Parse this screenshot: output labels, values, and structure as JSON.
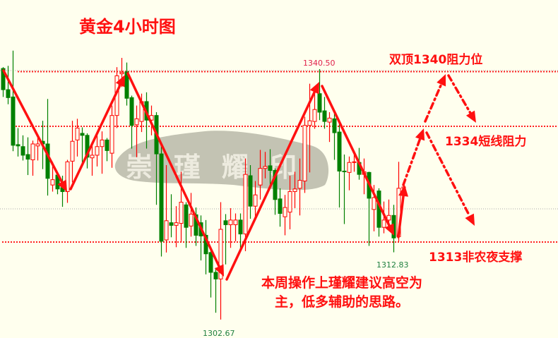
{
  "chart_data": {
    "type": "candlestick",
    "title": "黄金4小时图",
    "up_color": "#FF0000",
    "down_color": "#008000",
    "background": "#FFFFEE",
    "grid": false,
    "ohlc": [
      [
        1340.6,
        1340.8,
        1336.3,
        1337.4
      ],
      [
        1337.4,
        1341,
        1335.2,
        1336.2
      ],
      [
        1336.3,
        1343.3,
        1328.1,
        1329
      ],
      [
        1329.1,
        1331.6,
        1327.3,
        1328.9
      ],
      [
        1328.8,
        1330.5,
        1326.7,
        1327.5
      ],
      [
        1327.6,
        1330.2,
        1324.5,
        1326.9
      ],
      [
        1326.8,
        1329.7,
        1324.4,
        1329.2
      ],
      [
        1328.9,
        1330.5,
        1326.7,
        1329.2
      ],
      [
        1329.6,
        1332.7,
        1325.4,
        1329.2
      ],
      [
        1329.2,
        1336,
        1321.4,
        1324
      ],
      [
        1323,
        1326.5,
        1322,
        1323.8
      ],
      [
        1324.5,
        1324.8,
        1321.6,
        1322.4
      ],
      [
        1322.6,
        1324.4,
        1319.7,
        1322
      ],
      [
        1322,
        1326.8,
        1320.3,
        1326.5
      ],
      [
        1326.6,
        1332.7,
        1323.4,
        1329.6
      ],
      [
        1329.8,
        1333,
        1327.3,
        1331.6
      ],
      [
        1330.8,
        1331.7,
        1326,
        1330.5
      ],
      [
        1330.5,
        1330.8,
        1325.5,
        1327.2
      ],
      [
        1327.1,
        1329.4,
        1324.4,
        1327.5
      ],
      [
        1327.5,
        1330.5,
        1325.8,
        1328.8
      ],
      [
        1328.8,
        1331.1,
        1324.7,
        1329.8
      ],
      [
        1329.8,
        1330.1,
        1326.6,
        1328.2
      ],
      [
        1327.8,
        1335,
        1325.6,
        1333.5
      ],
      [
        1333.5,
        1340.8,
        1331.6,
        1339.5
      ],
      [
        1339.8,
        1342.2,
        1337.8,
        1340
      ],
      [
        1340.1,
        1341.5,
        1335,
        1336.1
      ],
      [
        1336.2,
        1336.5,
        1328.5,
        1332
      ],
      [
        1332.1,
        1335,
        1327.2,
        1333
      ],
      [
        1332.6,
        1336.8,
        1331,
        1335.6
      ],
      [
        1335.6,
        1337,
        1328.5,
        1332.8
      ],
      [
        1332.8,
        1335,
        1330.5,
        1333.5
      ],
      [
        1333.5,
        1334,
        1320,
        1327.7
      ],
      [
        1327.7,
        1329,
        1312.2,
        1314.5
      ],
      [
        1314.7,
        1326,
        1312.8,
        1317.6
      ],
      [
        1317.3,
        1321.6,
        1315.1,
        1316.9
      ],
      [
        1316.9,
        1319.8,
        1313.6,
        1317.3
      ],
      [
        1317.2,
        1325,
        1314.4,
        1320.4
      ],
      [
        1320,
        1320.4,
        1313.5,
        1316.6
      ],
      [
        1316.8,
        1321.8,
        1315.2,
        1318.6
      ],
      [
        1318.5,
        1319.6,
        1313.8,
        1315.4
      ],
      [
        1317.3,
        1318.4,
        1311.6,
        1315.3
      ],
      [
        1315.4,
        1317.7,
        1309.5,
        1312.6
      ],
      [
        1312.8,
        1313.5,
        1306,
        1309.8
      ],
      [
        1309.8,
        1310.5,
        1303.7,
        1308.8
      ],
      [
        1308.8,
        1320.4,
        1302.67,
        1316.3
      ],
      [
        1317.6,
        1318.6,
        1311,
        1317
      ],
      [
        1317,
        1319.5,
        1313.5,
        1317.7
      ],
      [
        1317,
        1318.7,
        1314.5,
        1317.7
      ],
      [
        1317.7,
        1318.7,
        1313.2,
        1315.6
      ],
      [
        1315.6,
        1327,
        1313,
        1324.6
      ],
      [
        1324.4,
        1326,
        1317.9,
        1319.8
      ],
      [
        1319.8,
        1323.6,
        1318,
        1321.5
      ],
      [
        1323,
        1328.3,
        1320.8,
        1325.5
      ],
      [
        1325.5,
        1328,
        1324,
        1325.8
      ],
      [
        1325.9,
        1328.4,
        1322.9,
        1325.2
      ],
      [
        1325.2,
        1325.5,
        1318.5,
        1320.8
      ],
      [
        1320.9,
        1322.5,
        1316.7,
        1318.7
      ],
      [
        1318.2,
        1321.5,
        1315.4,
        1319.6
      ],
      [
        1318.9,
        1324.4,
        1316.3,
        1322
      ],
      [
        1322,
        1325,
        1319.5,
        1322.4
      ],
      [
        1322.5,
        1327,
        1318.4,
        1323.7
      ],
      [
        1323.6,
        1333.3,
        1321.8,
        1332
      ],
      [
        1332,
        1338.3,
        1324.9,
        1332.7
      ],
      [
        1332.6,
        1337.3,
        1331.5,
        1334.4
      ],
      [
        1336.8,
        1340.5,
        1332.8,
        1334
      ],
      [
        1334.2,
        1336.3,
        1331.5,
        1332.6
      ],
      [
        1332.5,
        1334,
        1329.5,
        1333.1
      ],
      [
        1333,
        1334,
        1326.8,
        1330.9
      ],
      [
        1331,
        1332.6,
        1319.6,
        1325.1
      ],
      [
        1325.1,
        1327.6,
        1317.1,
        1325
      ],
      [
        1324.9,
        1327.3,
        1322.2,
        1326.4
      ],
      [
        1326.4,
        1327.6,
        1325,
        1326.5
      ],
      [
        1326.4,
        1328.6,
        1323.8,
        1324.6
      ],
      [
        1324.6,
        1327,
        1321.6,
        1325
      ],
      [
        1324.9,
        1325,
        1313.8,
        1321
      ],
      [
        1319.3,
        1323,
        1316,
        1321.1
      ],
      [
        1322.1,
        1322.5,
        1315.2,
        1316.6
      ],
      [
        1316.6,
        1320.5,
        1315.7,
        1317.7
      ],
      [
        1317.7,
        1320.8,
        1316.6,
        1318.4
      ],
      [
        1318.4,
        1320,
        1312.83,
        1315
      ],
      [
        1315.2,
        1326.5,
        1314.4,
        1322.5
      ],
      [
        1322.5,
        1323.5,
        1321.5,
        1322.7
      ]
    ],
    "price_labels": {
      "high": "1340.50",
      "low": "1302.67",
      "recent_low": "1312.83"
    },
    "levels": [
      {
        "price": 1340,
        "label": "双顶1340阻力位"
      },
      {
        "price": 1334,
        "label": "1334短线阻力"
      },
      {
        "price": 1313,
        "label": "1313非农夜支撑"
      }
    ],
    "annotation": "本周操作上瑾耀建议高空为主，低多辅助的思路。",
    "watermark": "崇瑾耀印"
  }
}
